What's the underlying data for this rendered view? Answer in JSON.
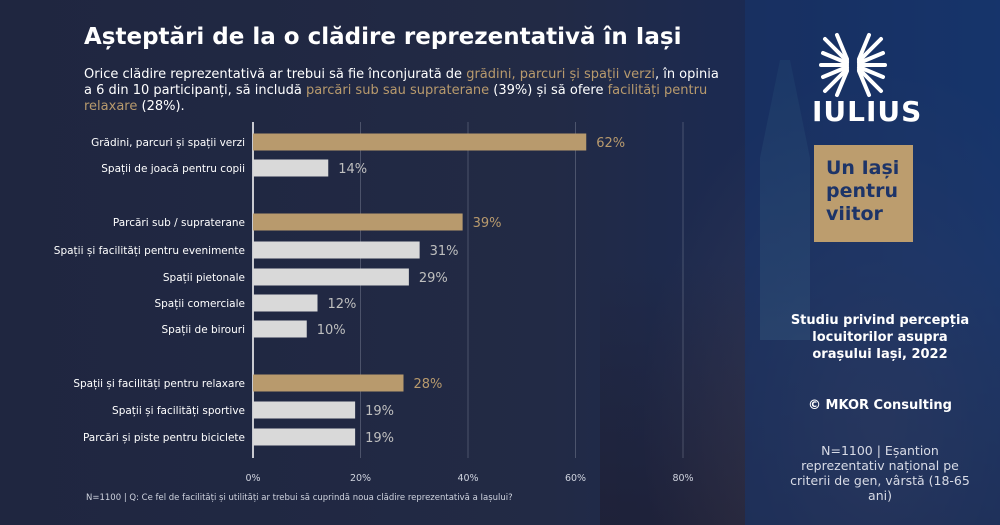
{
  "title": "Așteptări de la o clădire reprezentativă  în Iași",
  "subtitle": {
    "p1": "Orice clădire reprezentativă ar trebui să fie înconjurată de ",
    "h1": "grădini, parcuri și spații verzi",
    "p2": ", în opinia a 6 din 10 participanți, să includă ",
    "h2": "parcări sub sau supraterane",
    "p3": " (39%) și să ofere ",
    "h3": "facilități pentru relaxare",
    "p4": " (28%)."
  },
  "brand": {
    "name": "IULIUS",
    "tagline": "Un Iași pentru viitor"
  },
  "study": "Studiu privind percepția locuitorilor asupra orașului Iași, 2022",
  "copyright": "© MKOR Consulting",
  "sample": "N=1100 | Eșantion reprezentativ național pe criterii de gen, vârstă (18-65 ani)",
  "footnote": "N=1100 | Q: Ce fel de facilități și utilități ar trebui să cuprindă noua clădire reprezentativă a Iașului?",
  "colors": {
    "highlight": "#b89a6d",
    "normal": "#d9d9d9",
    "label": "#bfbfbf"
  },
  "chart_data": {
    "type": "bar",
    "orientation": "horizontal",
    "categories": [
      "Grădini, parcuri și spații verzi",
      "Spații de joacă pentru copii",
      "Parcări sub / supraterane",
      "Spații și facilități pentru evenimente",
      "Spații pietonale",
      "Spații comerciale",
      "Spații de birouri",
      "Spații și facilități pentru relaxare",
      "Spații și facilități sportive",
      "Parcări și piste pentru biciclete"
    ],
    "groups": [
      0,
      0,
      1,
      1,
      1,
      1,
      1,
      2,
      2,
      2
    ],
    "highlighted": [
      true,
      false,
      true,
      false,
      false,
      false,
      false,
      true,
      false,
      false
    ],
    "values": [
      62,
      14,
      39,
      31,
      29,
      12,
      10,
      28,
      19,
      19
    ],
    "xlim": [
      0,
      80
    ],
    "xticks": [
      0,
      20,
      40,
      60,
      80
    ],
    "xtick_labels": [
      "0%",
      "20%",
      "40%",
      "60%",
      "80%"
    ],
    "value_suffix": "%",
    "grid": true
  }
}
